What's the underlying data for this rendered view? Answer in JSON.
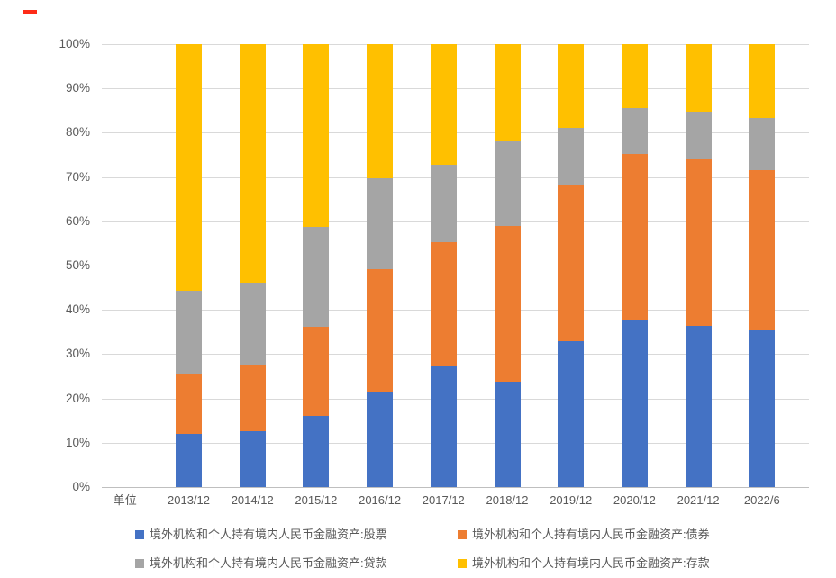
{
  "annotation": {
    "red_dash_color": "#fe2b17"
  },
  "chart_data": {
    "type": "bar",
    "subtype": "stacked-100-percent",
    "title": "",
    "unit_label": "单位",
    "categories": [
      "2013/12",
      "2014/12",
      "2015/12",
      "2016/12",
      "2017/12",
      "2018/12",
      "2019/12",
      "2020/12",
      "2021/12",
      "2022/6"
    ],
    "series": [
      {
        "key": "stocks",
        "name": "境外机构和个人持有境内人民币金融资产:股票",
        "color": "#4472C4",
        "values": [
          12.0,
          12.6,
          16.1,
          21.5,
          27.3,
          23.7,
          32.9,
          37.9,
          36.3,
          35.4
        ]
      },
      {
        "key": "bonds",
        "name": "境外机构和个人持有境内人民币金融资产:债券",
        "color": "#ED7D31",
        "values": [
          13.7,
          15.1,
          20.1,
          27.7,
          28.0,
          35.2,
          35.1,
          37.3,
          37.7,
          36.2
        ]
      },
      {
        "key": "loans",
        "name": "境外机构和个人持有境内人民币金融资产:贷款",
        "color": "#A5A5A5",
        "values": [
          18.6,
          18.5,
          22.5,
          20.6,
          17.4,
          19.2,
          13.1,
          10.4,
          10.7,
          11.7
        ]
      },
      {
        "key": "deposits",
        "name": "境外机构和个人持有境内人民币金融资产:存款",
        "color": "#FFC000",
        "values": [
          55.7,
          53.8,
          41.3,
          30.2,
          27.3,
          21.9,
          18.9,
          14.4,
          15.3,
          16.7
        ]
      }
    ],
    "y_ticks": [
      "0%",
      "10%",
      "20%",
      "30%",
      "40%",
      "50%",
      "60%",
      "70%",
      "80%",
      "90%",
      "100%"
    ],
    "ylim": [
      0,
      100
    ],
    "xlabel": "",
    "ylabel": "",
    "grid": true,
    "legend_position": "bottom",
    "style": {
      "axis_text_color": "#595959",
      "gridline_color": "#d9d9d9",
      "axis_line_color": "#bfbfbf",
      "background": "#ffffff"
    }
  }
}
